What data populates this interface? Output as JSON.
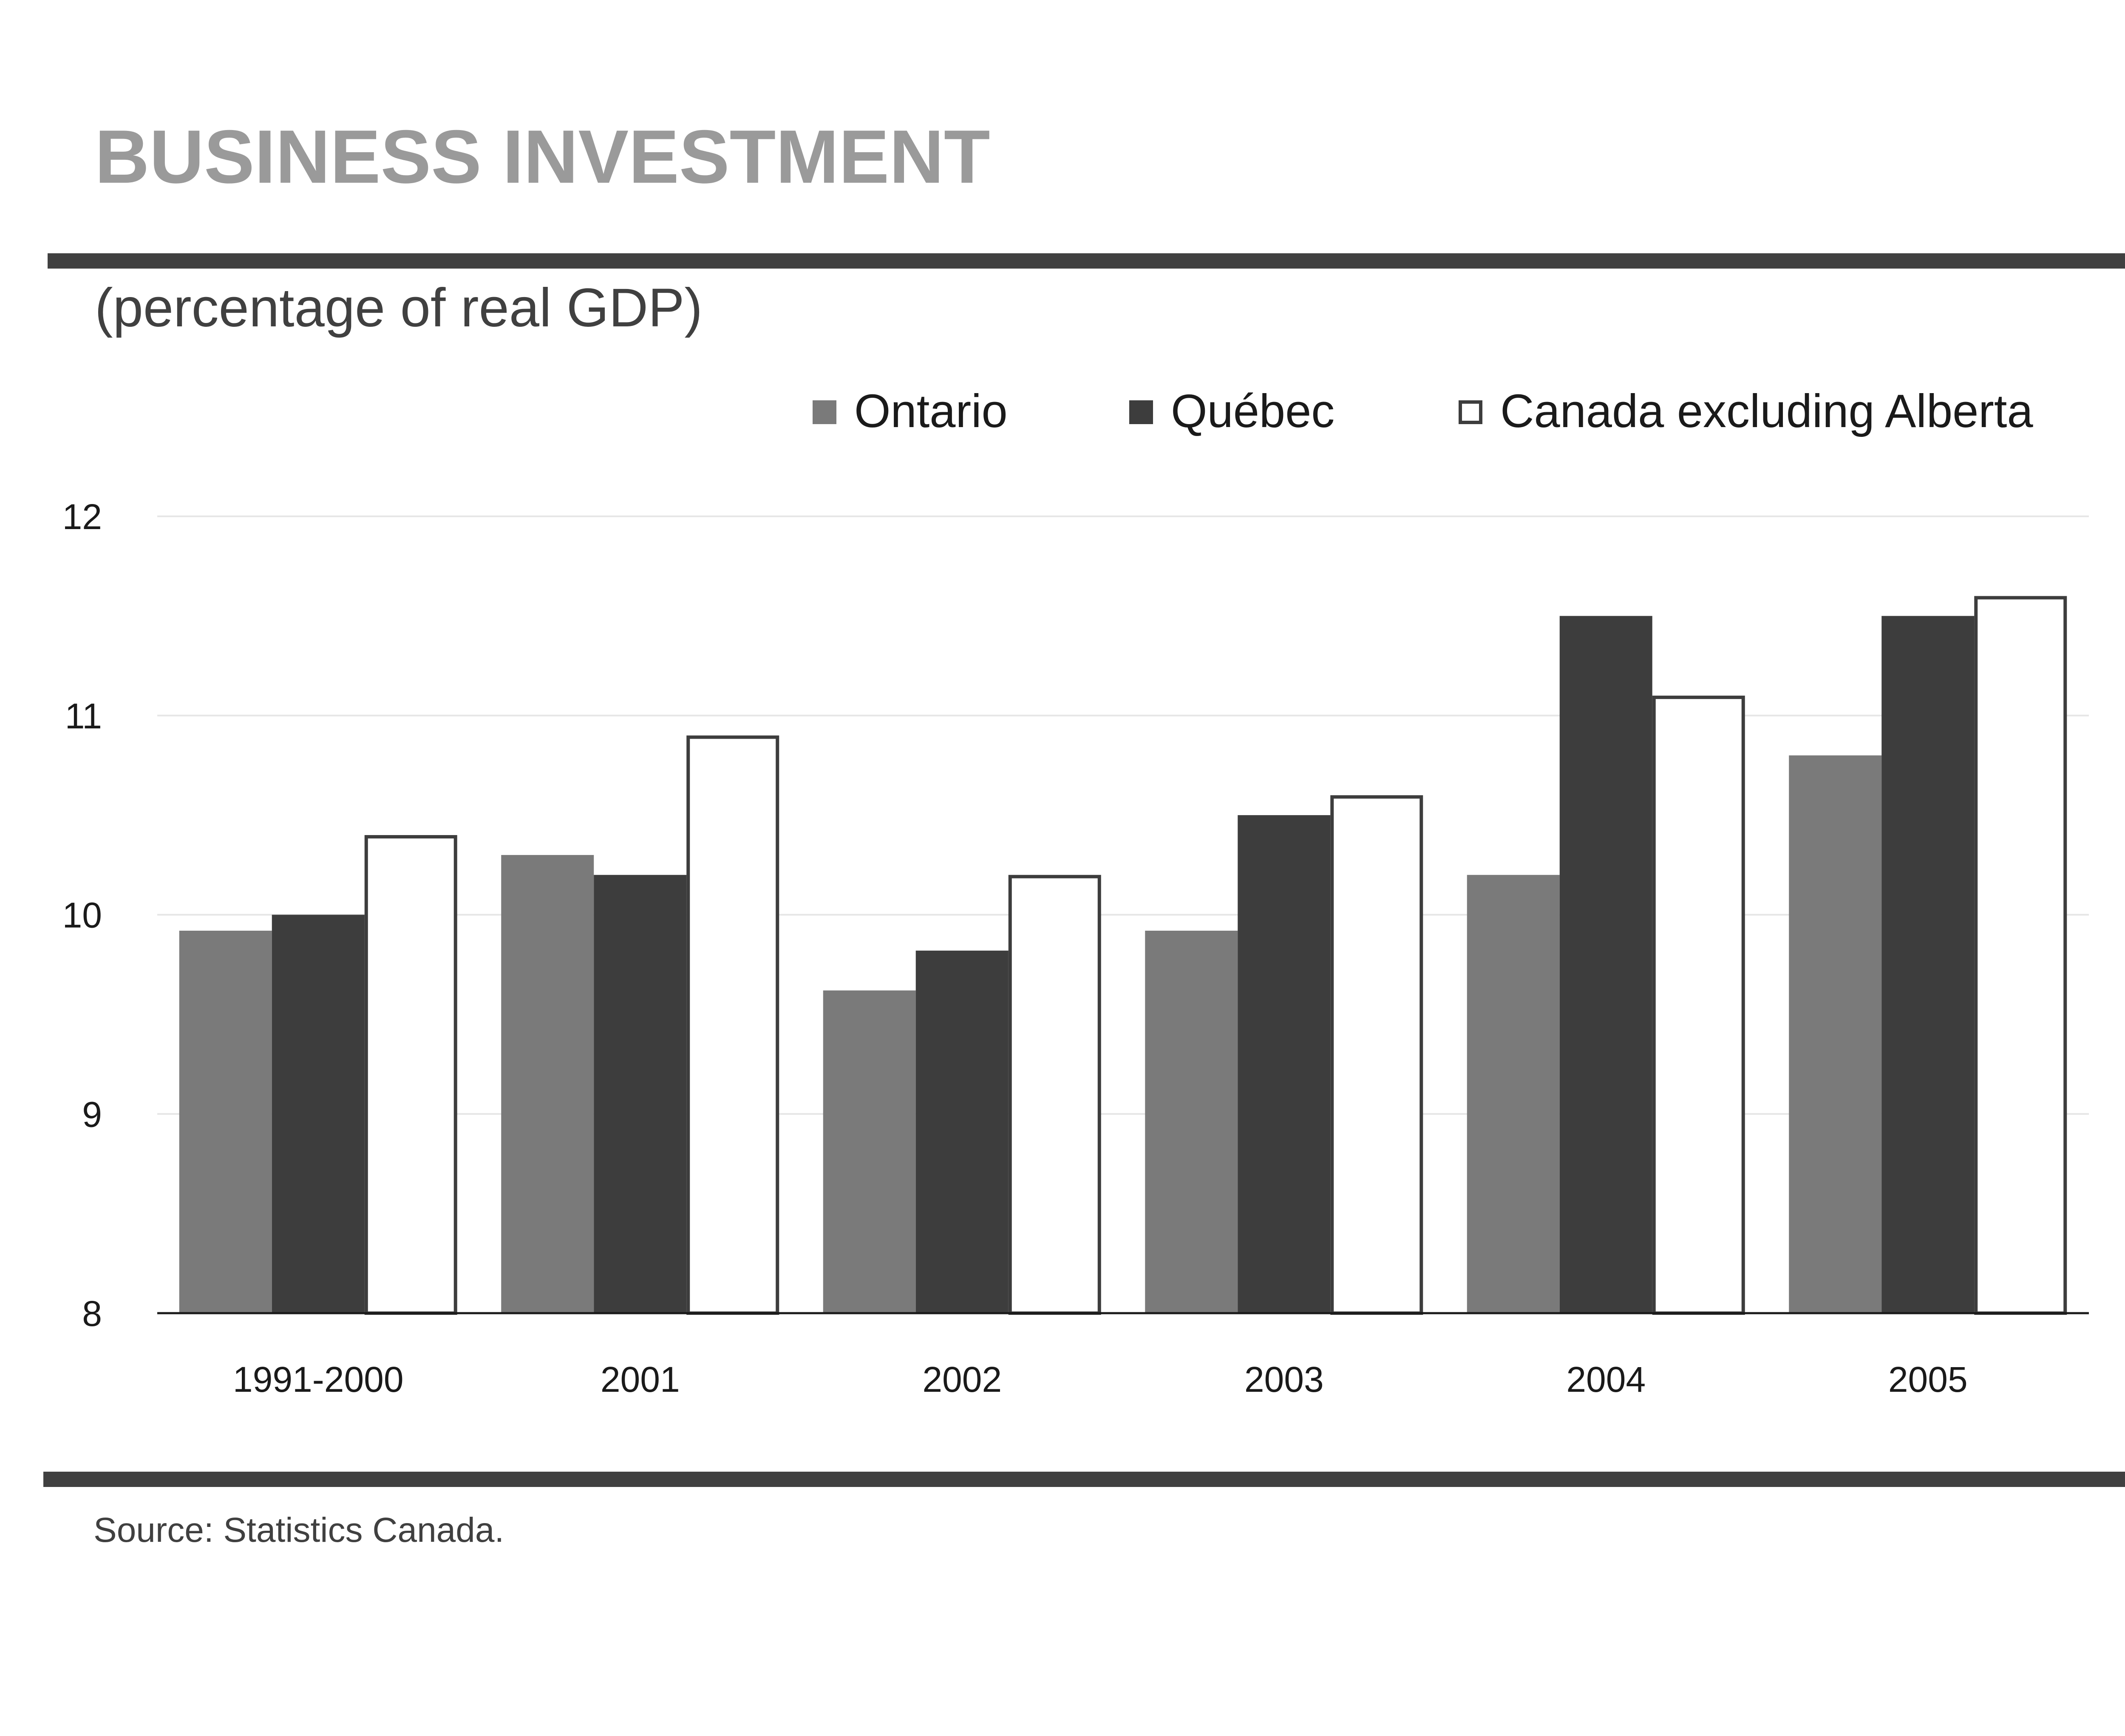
{
  "colors": {
    "title": "#9a9a9a",
    "rule": "#404040",
    "text": "#404040",
    "axis_text": "#1a1a1a",
    "grid": "#e6e6e6",
    "axis_line": "#1a1a1a",
    "background": "#ffffff"
  },
  "chart_data": {
    "type": "bar",
    "title": "BUSINESS INVESTMENT",
    "subtitle": "(percentage of real GDP)",
    "source": "Source: Statistics Canada.",
    "xlabel": "",
    "ylabel": "",
    "ylim": [
      8,
      12
    ],
    "yticks": [
      "8",
      "9",
      "10",
      "11",
      "12"
    ],
    "grid": true,
    "legend_position": "top-right",
    "categories": [
      "1991-2000",
      "2001",
      "2002",
      "2003",
      "2004",
      "2005"
    ],
    "series": [
      {
        "name": "Ontario",
        "color": "#7a7a7a",
        "stroke": "none",
        "values": [
          9.92,
          10.3,
          9.62,
          9.92,
          10.2,
          10.8
        ]
      },
      {
        "name": "Québec",
        "color": "#3d3d3d",
        "stroke": "none",
        "values": [
          10.0,
          10.2,
          9.82,
          10.5,
          11.5,
          11.5
        ]
      },
      {
        "name": "Canada excluding Alberta",
        "color": "#ffffff",
        "stroke": "#3d3d3d",
        "values": [
          10.4,
          10.9,
          10.2,
          10.6,
          11.1,
          11.6
        ]
      }
    ]
  }
}
